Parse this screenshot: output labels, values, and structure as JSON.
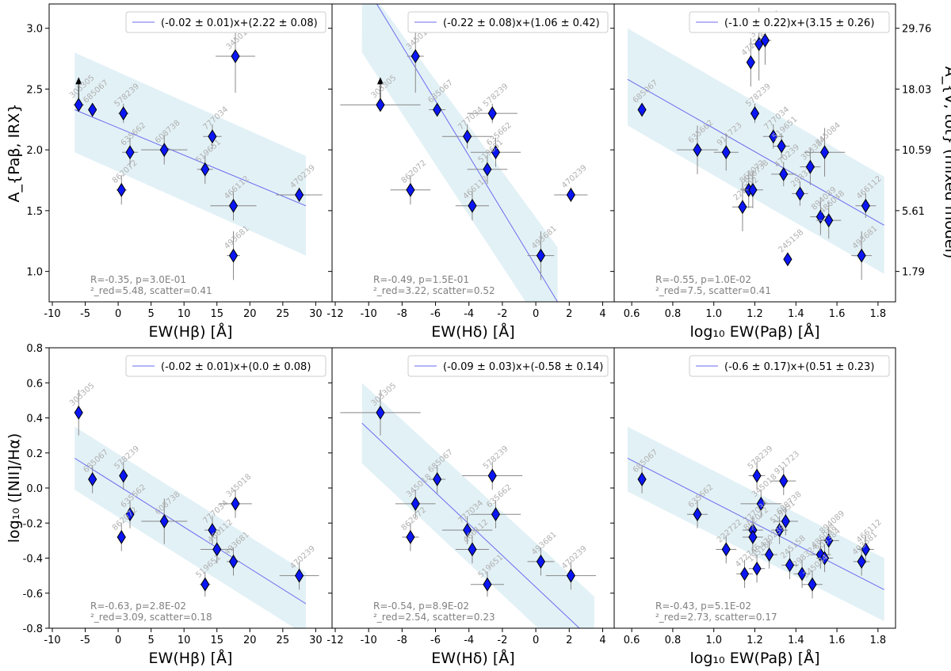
{
  "figure": {
    "right_axis_label": "A_{V, tot} (mixed model)",
    "right_axis_ticks": [
      "29.76",
      "18.03",
      "10.59",
      "5.61",
      "1.79"
    ],
    "right_axis_tick_values": [
      3.0,
      2.5,
      2.0,
      1.5,
      1.0
    ]
  },
  "chart_data": [
    {
      "type": "scatter",
      "id": "p1",
      "row": 0,
      "col": 0,
      "xlabel": "EW(Hβ) [Å]",
      "ylabel": "A_{Paβ, IRX}",
      "xlim": [
        -10,
        32
      ],
      "ylim": [
        0.75,
        3.2
      ],
      "xticks": [
        -10,
        -5,
        0,
        5,
        10,
        15,
        20,
        25,
        30
      ],
      "yticks": [
        1.0,
        1.5,
        2.0,
        2.5,
        3.0
      ],
      "fit": {
        "label": "(-0.02 ± 0.01)x+(2.22 ± 0.08)",
        "x": [
          -6.6,
          28.5
        ],
        "y": [
          2.33,
          1.54
        ],
        "band_upper": [
          2.8,
          1.95
        ],
        "band_lower": [
          1.98,
          1.13
        ]
      },
      "stats_line1": "R=-0.35, p=3.0E-01",
      "stats_line2": "²_red=5.48, scatter=0.41",
      "points": [
        {
          "id": "303305",
          "x": -6.0,
          "y": 2.37,
          "xerr": 0.8,
          "yerr": 0.05,
          "lower_limit": true
        },
        {
          "id": "685067",
          "x": -3.9,
          "y": 2.33,
          "xerr": 0.6,
          "yerr": 0.05
        },
        {
          "id": "578239",
          "x": 0.8,
          "y": 2.3,
          "xerr": 0.8,
          "yerr": 0.08
        },
        {
          "id": "635662",
          "x": 1.8,
          "y": 1.98,
          "xerr": 1.2,
          "yerr": 0.12
        },
        {
          "id": "862072",
          "x": 0.5,
          "y": 1.67,
          "xerr": 0.8,
          "yerr": 0.12
        },
        {
          "id": "608738",
          "x": 7.0,
          "y": 2.0,
          "xerr": 3.5,
          "yerr": 0.12
        },
        {
          "id": "777034",
          "x": 14.3,
          "y": 2.11,
          "xerr": 1.4,
          "yerr": 0.1
        },
        {
          "id": "519651",
          "x": 13.2,
          "y": 1.84,
          "xerr": 1.2,
          "yerr": 0.12
        },
        {
          "id": "466112",
          "x": 17.5,
          "y": 1.54,
          "xerr": 3.5,
          "yerr": 0.12
        },
        {
          "id": "493681",
          "x": 17.5,
          "y": 1.13,
          "xerr": 1.0,
          "yerr": 0.2
        },
        {
          "id": "345018",
          "x": 17.8,
          "y": 2.77,
          "xerr": 3.0,
          "yerr": 0.3
        },
        {
          "id": "470239",
          "x": 27.5,
          "y": 1.63,
          "xerr": 3.5,
          "yerr": 0.06
        }
      ]
    },
    {
      "type": "scatter",
      "id": "p2",
      "row": 0,
      "col": 1,
      "xlabel": "EW(Hδ) [Å]",
      "ylabel": "",
      "xlim": [
        -12,
        4.5
      ],
      "ylim": [
        0.75,
        3.2
      ],
      "xticks": [
        -12,
        -10,
        -8,
        -6,
        -4,
        -2,
        0,
        2,
        4
      ],
      "yticks": [
        1.0,
        1.5,
        2.0,
        2.5,
        3.0
      ],
      "fit": {
        "label": "(-0.22 ± 0.08)x+(1.06 ± 0.42)",
        "x": [
          -10.4,
          1.3
        ],
        "y": [
          3.4,
          0.75
        ],
        "band_upper": [
          3.4,
          1.2
        ],
        "band_lower": [
          2.8,
          0.35
        ]
      },
      "stats_line1": "R=-0.49, p=1.5E-01",
      "stats_line2": "²_red=3.22, scatter=0.52",
      "points": [
        {
          "id": "303305",
          "x": -9.3,
          "y": 2.37,
          "xerr": 2.4,
          "yerr": 0.05,
          "lower_limit": true
        },
        {
          "id": "345018",
          "x": -7.2,
          "y": 2.77,
          "xerr": 0.5,
          "yerr": 0.3
        },
        {
          "id": "685067",
          "x": -5.9,
          "y": 2.33,
          "xerr": 0.5,
          "yerr": 0.05
        },
        {
          "id": "578239",
          "x": -2.6,
          "y": 2.3,
          "xerr": 1.5,
          "yerr": 0.08
        },
        {
          "id": "777034",
          "x": -4.1,
          "y": 2.11,
          "xerr": 1.5,
          "yerr": 0.1
        },
        {
          "id": "635662",
          "x": -2.4,
          "y": 1.98,
          "xerr": 1.5,
          "yerr": 0.12
        },
        {
          "id": "519651",
          "x": -2.9,
          "y": 1.84,
          "xerr": 1.2,
          "yerr": 0.12
        },
        {
          "id": "862072",
          "x": -7.5,
          "y": 1.67,
          "xerr": 1.2,
          "yerr": 0.12
        },
        {
          "id": "466112",
          "x": -3.8,
          "y": 1.54,
          "xerr": 1.0,
          "yerr": 0.12
        },
        {
          "id": "470239",
          "x": 2.1,
          "y": 1.63,
          "xerr": 1.0,
          "yerr": 0.06
        },
        {
          "id": "493681",
          "x": 0.3,
          "y": 1.13,
          "xerr": 0.8,
          "yerr": 0.2
        }
      ]
    },
    {
      "type": "scatter",
      "id": "p3",
      "row": 0,
      "col": 2,
      "xlabel": "log₁₀ EW(Paβ) [Å]",
      "ylabel": "",
      "xlim": [
        0.53,
        1.87
      ],
      "ylim": [
        0.75,
        3.2
      ],
      "xticks": [
        0.6,
        0.8,
        1.0,
        1.2,
        1.4,
        1.6,
        1.8
      ],
      "yticks": [
        1.0,
        1.5,
        2.0,
        2.5,
        3.0
      ],
      "fit": {
        "label": "(-1.0 ± 0.22)x+(3.15 ± 0.26)",
        "x": [
          0.58,
          1.83
        ],
        "y": [
          2.58,
          1.38
        ],
        "band_upper": [
          3.0,
          1.78
        ],
        "band_lower": [
          2.2,
          0.98
        ]
      },
      "stats_line1": "R=-0.55, p=1.0E-02",
      "stats_line2": "²_red=7.5, scatter=0.41",
      "points": [
        {
          "id": "685067",
          "x": 0.65,
          "y": 2.33,
          "xerr": 0.02,
          "yerr": 0.05
        },
        {
          "id": "635662",
          "x": 0.92,
          "y": 2.0,
          "xerr": 0.1,
          "yerr": 0.2
        },
        {
          "id": "911723",
          "x": 1.06,
          "y": 1.98,
          "xerr": 0.06,
          "yerr": 0.15
        },
        {
          "id": "222722",
          "x": 1.14,
          "y": 1.53,
          "xerr": 0.05,
          "yerr": 0.2
        },
        {
          "id": "862072",
          "x": 1.17,
          "y": 1.67,
          "xerr": 0.04,
          "yerr": 0.15
        },
        {
          "id": "608738",
          "x": 1.19,
          "y": 1.67,
          "xerr": 0.05,
          "yerr": 0.15
        },
        {
          "id": "578239",
          "x": 1.2,
          "y": 2.3,
          "xerr": 0.02,
          "yerr": 0.08
        },
        {
          "id": "472746",
          "x": 1.18,
          "y": 2.72,
          "xerr": 0.02,
          "yerr": 0.2
        },
        {
          "id": "345018",
          "x": 1.22,
          "y": 2.87,
          "xerr": 0.03,
          "yerr": 0.3
        },
        {
          "id": "195185",
          "x": 1.25,
          "y": 2.9,
          "xerr": 0.03,
          "yerr": 0.2
        },
        {
          "id": "777034",
          "x": 1.29,
          "y": 2.11,
          "xerr": 0.05,
          "yerr": 0.1
        },
        {
          "id": "519651",
          "x": 1.33,
          "y": 2.03,
          "xerr": 0.04,
          "yerr": 0.1
        },
        {
          "id": "470239",
          "x": 1.34,
          "y": 1.8,
          "xerr": 0.06,
          "yerr": 0.1
        },
        {
          "id": "245158",
          "x": 1.36,
          "y": 1.1,
          "xerr": 0.02,
          "yerr": 0.05
        },
        {
          "id": "298324",
          "x": 1.42,
          "y": 1.64,
          "xerr": 0.04,
          "yerr": 0.1
        },
        {
          "id": "303384",
          "x": 1.47,
          "y": 1.86,
          "xerr": 0.05,
          "yerr": 0.15
        },
        {
          "id": "894089",
          "x": 1.52,
          "y": 1.45,
          "xerr": 0.05,
          "yerr": 0.15
        },
        {
          "id": "345084",
          "x": 1.54,
          "y": 1.98,
          "xerr": 0.1,
          "yerr": 0.2
        },
        {
          "id": "486048",
          "x": 1.56,
          "y": 1.42,
          "xerr": 0.06,
          "yerr": 0.15
        },
        {
          "id": "493681",
          "x": 1.72,
          "y": 1.13,
          "xerr": 0.05,
          "yerr": 0.2
        },
        {
          "id": "466112",
          "x": 1.74,
          "y": 1.54,
          "xerr": 0.05,
          "yerr": 0.1
        }
      ]
    },
    {
      "type": "scatter",
      "id": "p4",
      "row": 1,
      "col": 0,
      "xlabel": "EW(Hβ) [Å]",
      "ylabel": "log₁₀ ([NII]/Hα)",
      "xlim": [
        -10,
        32
      ],
      "ylim": [
        -0.8,
        0.8
      ],
      "xticks": [
        -10,
        -5,
        0,
        5,
        10,
        15,
        20,
        25,
        30
      ],
      "yticks": [
        -0.8,
        -0.6,
        -0.4,
        -0.2,
        0.0,
        0.2,
        0.4,
        0.6,
        0.8
      ],
      "fit": {
        "label": "(-0.02 ± 0.01)x+(0.0 ± 0.08)",
        "x": [
          -6.6,
          28.5
        ],
        "y": [
          0.17,
          -0.66
        ],
        "band_upper": [
          0.35,
          -0.48
        ],
        "band_lower": [
          -0.01,
          -0.84
        ]
      },
      "stats_line1": "R=-0.63, p=2.8E-02",
      "stats_line2": "²_red=3.09, scatter=0.18",
      "points": [
        {
          "id": "303305",
          "x": -6.0,
          "y": 0.43,
          "xerr": 0.3,
          "yerr": 0.13
        },
        {
          "id": "685067",
          "x": -3.9,
          "y": 0.05,
          "xerr": 0.3,
          "yerr": 0.08
        },
        {
          "id": "578239",
          "x": 0.8,
          "y": 0.07,
          "xerr": 0.3,
          "yerr": 0.08
        },
        {
          "id": "635662",
          "x": 1.8,
          "y": -0.15,
          "xerr": 0.3,
          "yerr": 0.08
        },
        {
          "id": "862072",
          "x": 0.5,
          "y": -0.28,
          "xerr": 0.3,
          "yerr": 0.08
        },
        {
          "id": "608738",
          "x": 7.0,
          "y": -0.19,
          "xerr": 3.5,
          "yerr": 0.13
        },
        {
          "id": "777034",
          "x": 14.3,
          "y": -0.24,
          "xerr": 1.2,
          "yerr": 0.08
        },
        {
          "id": "466112",
          "x": 15.0,
          "y": -0.35,
          "xerr": 2.5,
          "yerr": 0.08
        },
        {
          "id": "493681",
          "x": 17.5,
          "y": -0.42,
          "xerr": 1.0,
          "yerr": 0.08
        },
        {
          "id": "519651",
          "x": 13.2,
          "y": -0.55,
          "xerr": 0.8,
          "yerr": 0.07
        },
        {
          "id": "345018",
          "x": 17.8,
          "y": -0.09,
          "xerr": 2.5,
          "yerr": 0.08
        },
        {
          "id": "470239",
          "x": 27.5,
          "y": -0.5,
          "xerr": 3.0,
          "yerr": 0.08
        }
      ]
    },
    {
      "type": "scatter",
      "id": "p5",
      "row": 1,
      "col": 1,
      "xlabel": "EW(Hδ) [Å]",
      "ylabel": "",
      "xlim": [
        -12,
        4.5
      ],
      "ylim": [
        -0.8,
        0.8
      ],
      "xticks": [
        -12,
        -10,
        -8,
        -6,
        -4,
        -2,
        0,
        2,
        4
      ],
      "yticks": [
        -0.8,
        -0.6,
        -0.4,
        -0.2,
        0.0,
        0.2,
        0.4,
        0.6,
        0.8
      ],
      "fit": {
        "label": "(-0.09 ± 0.03)x+(-0.58 ± 0.14)",
        "x": [
          -10.4,
          3.5
        ],
        "y": [
          0.37,
          -0.88
        ],
        "band_upper": [
          0.6,
          -0.62
        ],
        "band_lower": [
          0.14,
          -1.1
        ]
      },
      "stats_line1": "R=-0.54, p=8.9E-02",
      "stats_line2": "²_red=2.54, scatter=0.23",
      "points": [
        {
          "id": "303305",
          "x": -9.3,
          "y": 0.43,
          "xerr": 2.4,
          "yerr": 0.13
        },
        {
          "id": "685067",
          "x": -5.9,
          "y": 0.05,
          "xerr": 0.5,
          "yerr": 0.08
        },
        {
          "id": "578239",
          "x": -2.6,
          "y": 0.07,
          "xerr": 1.8,
          "yerr": 0.08
        },
        {
          "id": "345018",
          "x": -7.2,
          "y": -0.09,
          "xerr": 1.2,
          "yerr": 0.08
        },
        {
          "id": "635662",
          "x": -2.4,
          "y": -0.15,
          "xerr": 1.5,
          "yerr": 0.08
        },
        {
          "id": "777034",
          "x": -4.1,
          "y": -0.24,
          "xerr": 1.5,
          "yerr": 0.08
        },
        {
          "id": "862072",
          "x": -7.5,
          "y": -0.28,
          "xerr": 0.5,
          "yerr": 0.08
        },
        {
          "id": "466112",
          "x": -3.8,
          "y": -0.35,
          "xerr": 1.0,
          "yerr": 0.08
        },
        {
          "id": "519651",
          "x": -2.9,
          "y": -0.55,
          "xerr": 1.0,
          "yerr": 0.07
        },
        {
          "id": "493681",
          "x": 0.3,
          "y": -0.42,
          "xerr": 0.8,
          "yerr": 0.08
        },
        {
          "id": "470239",
          "x": 2.1,
          "y": -0.5,
          "xerr": 1.5,
          "yerr": 0.08
        }
      ]
    },
    {
      "type": "scatter",
      "id": "p6",
      "row": 1,
      "col": 2,
      "xlabel": "log₁₀ EW(Paβ) [Å]",
      "ylabel": "",
      "xlim": [
        0.53,
        1.87
      ],
      "ylim": [
        -0.8,
        0.8
      ],
      "xticks": [
        0.6,
        0.8,
        1.0,
        1.2,
        1.4,
        1.6,
        1.8
      ],
      "yticks": [
        -0.8,
        -0.6,
        -0.4,
        -0.2,
        0.0,
        0.2,
        0.4,
        0.6,
        0.8
      ],
      "fit": {
        "label": "(-0.6 ± 0.17)x+(0.51 ± 0.23)",
        "x": [
          0.58,
          1.83
        ],
        "y": [
          0.17,
          -0.58
        ],
        "band_upper": [
          0.35,
          -0.4
        ],
        "band_lower": [
          -0.02,
          -0.76
        ]
      },
      "stats_line1": "R=-0.43, p=5.1E-02",
      "stats_line2": "²_red=2.73, scatter=0.17",
      "points": [
        {
          "id": "685067",
          "x": 0.65,
          "y": 0.05,
          "xerr": 0.02,
          "yerr": 0.08
        },
        {
          "id": "635662",
          "x": 0.92,
          "y": -0.15,
          "xerr": 0.05,
          "yerr": 0.08
        },
        {
          "id": "222722",
          "x": 1.06,
          "y": -0.35,
          "xerr": 0.05,
          "yerr": 0.08
        },
        {
          "id": "578239",
          "x": 1.21,
          "y": 0.07,
          "xerr": 0.04,
          "yerr": 0.08
        },
        {
          "id": "911723",
          "x": 1.34,
          "y": 0.04,
          "xerr": 0.06,
          "yerr": 0.08
        },
        {
          "id": "345018",
          "x": 1.23,
          "y": -0.09,
          "xerr": 0.1,
          "yerr": 0.08
        },
        {
          "id": "608738",
          "x": 1.35,
          "y": -0.19,
          "xerr": 0.06,
          "yerr": 0.08
        },
        {
          "id": "777034",
          "x": 1.19,
          "y": -0.24,
          "xerr": 0.05,
          "yerr": 0.08
        },
        {
          "id": "519651",
          "x": 1.32,
          "y": -0.24,
          "xerr": 0.04,
          "yerr": 0.08
        },
        {
          "id": "862072",
          "x": 1.19,
          "y": -0.28,
          "xerr": 0.05,
          "yerr": 0.08
        },
        {
          "id": "466112",
          "x": 1.74,
          "y": -0.35,
          "xerr": 0.04,
          "yerr": 0.08
        },
        {
          "id": "470239",
          "x": 1.27,
          "y": -0.38,
          "xerr": 0.04,
          "yerr": 0.08
        },
        {
          "id": "245158",
          "x": 1.37,
          "y": -0.44,
          "xerr": 0.04,
          "yerr": 0.08
        },
        {
          "id": "298324",
          "x": 1.43,
          "y": -0.49,
          "xerr": 0.04,
          "yerr": 0.08
        },
        {
          "id": "894089",
          "x": 1.56,
          "y": -0.3,
          "xerr": 0.05,
          "yerr": 0.08
        },
        {
          "id": "486048",
          "x": 1.52,
          "y": -0.38,
          "xerr": 0.05,
          "yerr": 0.08
        },
        {
          "id": "303384",
          "x": 1.54,
          "y": -0.4,
          "xerr": 0.04,
          "yerr": 0.08
        },
        {
          "id": "493681",
          "x": 1.72,
          "y": -0.42,
          "xerr": 0.04,
          "yerr": 0.08
        },
        {
          "id": "472746",
          "x": 1.15,
          "y": -0.49,
          "xerr": 0.04,
          "yerr": 0.08
        },
        {
          "id": "195185",
          "x": 1.21,
          "y": -0.46,
          "xerr": 0.04,
          "yerr": 0.08
        },
        {
          "id": "345084",
          "x": 1.48,
          "y": -0.55,
          "xerr": 0.05,
          "yerr": 0.08
        }
      ]
    }
  ]
}
